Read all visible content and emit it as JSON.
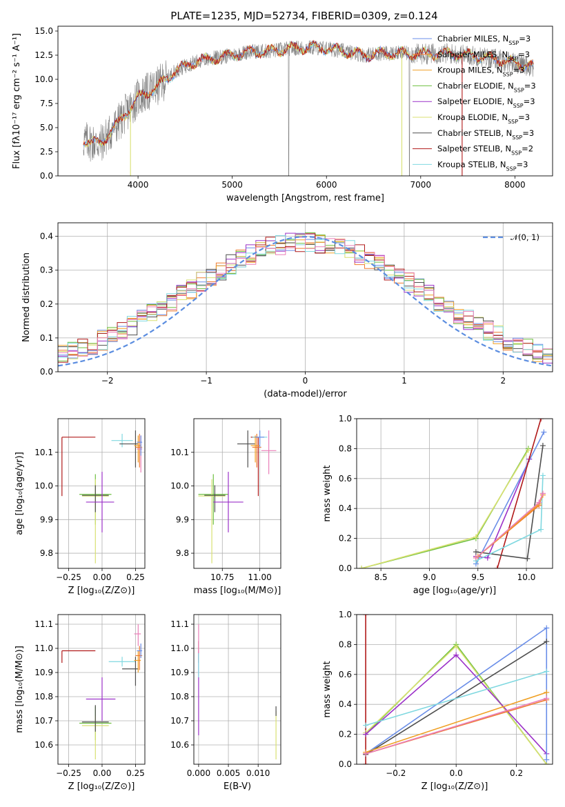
{
  "title": "PLATE=1235, MJD=52734, FIBERID=0309, z=0.124",
  "colors": {
    "chabrier_miles": "#6a8ee8",
    "salpeter_miles": "#ef7a2f",
    "kroupa_miles": "#f0a024",
    "chabrier_elodie": "#6dbf3f",
    "salpeter_elodie": "#9b30c8",
    "kroupa_elodie": "#d8e070",
    "chabrier_stelib": "#4d4d4d",
    "salpeter_stelib": "#b01818",
    "kroupa_stelib": "#7fd8e0",
    "pink": "#ea7fb8",
    "data": "#808080",
    "normal": "#5b8de0"
  },
  "chart_data": [
    {
      "type": "line",
      "name": "spectrum",
      "xlabel": "wavelength [Angstrom, rest frame]",
      "ylabel": "Flux [fλ10⁻¹⁷ erg cm⁻² s⁻¹ A⁻¹]",
      "xlim": [
        3150,
        8400
      ],
      "ylim": [
        0,
        15.5
      ],
      "xticks": [
        "4000",
        "5000",
        "6000",
        "7000",
        "8000"
      ],
      "yticks": [
        "0.0",
        "2.5",
        "5.0",
        "7.5",
        "10.0",
        "12.5",
        "15.0"
      ],
      "continuum_x": [
        3400,
        3600,
        3800,
        4000,
        4200,
        4400,
        4600,
        4800,
        5000,
        5200,
        5400,
        5600,
        5800,
        6000,
        6200,
        6400,
        6600,
        6800,
        7000,
        7200,
        7400,
        7600,
        7800,
        8000,
        8200
      ],
      "continuum_y": [
        3.7,
        3.3,
        5.6,
        8.1,
        9.2,
        10.9,
        11.8,
        12.2,
        12.5,
        12.9,
        12.9,
        13.2,
        13.3,
        13.2,
        12.9,
        12.5,
        12.7,
        12.7,
        12.6,
        12.7,
        12.6,
        12.4,
        12.1,
        11.7,
        11.3
      ],
      "legend": [
        {
          "label": "Chabrier MILES, N",
          "sub": "SSP",
          "n": "=3",
          "color": "chabrier_miles"
        },
        {
          "label": "Salpeter MILES, N",
          "sub": "SSP",
          "n": "=3",
          "color": "salpeter_miles"
        },
        {
          "label": "Kroupa MILES, N",
          "sub": "SSP",
          "n": "=3",
          "color": "kroupa_miles"
        },
        {
          "label": "Chabrier ELODIE, N",
          "sub": "SSP",
          "n": "=3",
          "color": "chabrier_elodie"
        },
        {
          "label": "Salpeter ELODIE, N",
          "sub": "SSP",
          "n": "=3",
          "color": "salpeter_elodie"
        },
        {
          "label": "Kroupa ELODIE, N",
          "sub": "SSP",
          "n": "=3",
          "color": "kroupa_elodie"
        },
        {
          "label": "Chabrier STELIB, N",
          "sub": "SSP",
          "n": "=3",
          "color": "chabrier_stelib"
        },
        {
          "label": "Salpeter STELIB, N",
          "sub": "SSP",
          "n": "=2",
          "color": "salpeter_stelib"
        },
        {
          "label": "Kroupa STELIB, N",
          "sub": "SSP",
          "n": "=3",
          "color": "kroupa_stelib"
        }
      ]
    },
    {
      "type": "line",
      "name": "residuals",
      "xlabel": "(data-model)/error",
      "ylabel": "Normed distribution",
      "xlim": [
        -2.5,
        2.5
      ],
      "ylim": [
        0,
        0.44
      ],
      "xticks": [
        "−2",
        "−1",
        "0",
        "1",
        "2"
      ],
      "yticks": [
        "0.0",
        "0.1",
        "0.2",
        "0.3",
        "0.4"
      ],
      "legend_label": "𝒩(0, 1)",
      "legend_position": "top-right"
    },
    {
      "type": "scatter",
      "name": "age-vs-Z",
      "xlabel": "Z [log₁₀(Z/Z⊙)]",
      "ylabel": "age  [log₁₀(age/yr)]",
      "xlim": [
        -0.33,
        0.32
      ],
      "ylim": [
        9.755,
        10.2
      ],
      "xticks": [
        "−0.25",
        "0.00",
        "0.25"
      ],
      "yticks": [
        "9.8",
        "9.9",
        "10.0",
        "10.1"
      ],
      "points": [
        {
          "x": -0.3,
          "y": 10.145,
          "xerr": [
            0.0,
            0.25
          ],
          "yerr": [
            0.175,
            0.0
          ],
          "color": "salpeter_stelib"
        },
        {
          "x": 0.15,
          "y": 10.135,
          "xerr": [
            0.08,
            0.08
          ],
          "yerr": [
            0.02,
            0.02
          ],
          "color": "kroupa_stelib"
        },
        {
          "x": 0.25,
          "y": 10.125,
          "xerr": [
            0.12,
            0.02
          ],
          "yerr": [
            0.07,
            0.04
          ],
          "color": "chabrier_stelib"
        },
        {
          "x": 0.27,
          "y": 10.12,
          "xerr": [
            0.03,
            0.02
          ],
          "yerr": [
            0.05,
            0.03
          ],
          "color": "kroupa_miles"
        },
        {
          "x": 0.28,
          "y": 10.115,
          "xerr": [
            0.03,
            0.02
          ],
          "yerr": [
            0.06,
            0.04
          ],
          "color": "salpeter_miles"
        },
        {
          "x": 0.29,
          "y": 10.11,
          "xerr": [
            0.03,
            0.01
          ],
          "yerr": [
            0.07,
            0.04
          ],
          "color": "pink"
        },
        {
          "x": 0.29,
          "y": 10.13,
          "xerr": [
            0.03,
            0.01
          ],
          "yerr": [
            0.04,
            0.02
          ],
          "color": "chabrier_miles"
        },
        {
          "x": -0.05,
          "y": 9.975,
          "xerr": [
            0.12,
            0.12
          ],
          "yerr": [
            0.09,
            0.06
          ],
          "color": "chabrier_elodie"
        },
        {
          "x": -0.05,
          "y": 9.97,
          "xerr": [
            0.1,
            0.1
          ],
          "yerr": [
            0.2,
            0.05
          ],
          "color": "kroupa_elodie"
        },
        {
          "x": -0.05,
          "y": 9.972,
          "xerr": [
            0.1,
            0.1
          ],
          "yerr": [
            0.05,
            0.03
          ],
          "color": "chabrier_stelib"
        },
        {
          "x": 0.0,
          "y": 9.952,
          "xerr": [
            0.12,
            0.09
          ],
          "yerr": [
            0.09,
            0.09
          ],
          "color": "salpeter_elodie"
        }
      ]
    },
    {
      "type": "scatter",
      "name": "age-vs-mass",
      "xlabel": "mass [log₁₀(M/M⊙)]",
      "ylabel": "",
      "xlim": [
        10.56,
        11.14
      ],
      "ylim": [
        9.755,
        10.2
      ],
      "xticks": [
        "10.75",
        "11.00"
      ],
      "yticks": [
        "9.8",
        "9.9",
        "10.0",
        "10.1"
      ],
      "points": [
        {
          "x": 10.99,
          "y": 10.145,
          "xerr": [
            0.05,
            0.0
          ],
          "yerr": [
            0.175,
            0.0
          ],
          "color": "salpeter_stelib"
        },
        {
          "x": 11.0,
          "y": 10.145,
          "xerr": [
            0.05,
            0.05
          ],
          "yerr": [
            0.02,
            0.02
          ],
          "color": "kroupa_stelib"
        },
        {
          "x": 10.92,
          "y": 10.125,
          "xerr": [
            0.07,
            0.05
          ],
          "yerr": [
            0.07,
            0.04
          ],
          "color": "chabrier_stelib"
        },
        {
          "x": 10.97,
          "y": 10.12,
          "xerr": [
            0.03,
            0.03
          ],
          "yerr": [
            0.05,
            0.03
          ],
          "color": "kroupa_miles"
        },
        {
          "x": 10.98,
          "y": 10.115,
          "xerr": [
            0.03,
            0.03
          ],
          "yerr": [
            0.06,
            0.04
          ],
          "color": "salpeter_miles"
        },
        {
          "x": 11.06,
          "y": 10.105,
          "xerr": [
            0.05,
            0.05
          ],
          "yerr": [
            0.07,
            0.06
          ],
          "color": "pink"
        },
        {
          "x": 11.0,
          "y": 10.145,
          "xerr": [
            0.03,
            0.03
          ],
          "yerr": [
            0.03,
            0.02
          ],
          "color": "chabrier_miles"
        },
        {
          "x": 10.69,
          "y": 9.975,
          "xerr": [
            0.1,
            0.1
          ],
          "yerr": [
            0.09,
            0.06
          ],
          "color": "chabrier_elodie"
        },
        {
          "x": 10.68,
          "y": 9.97,
          "xerr": [
            0.09,
            0.09
          ],
          "yerr": [
            0.2,
            0.05
          ],
          "color": "kroupa_elodie"
        },
        {
          "x": 10.7,
          "y": 9.972,
          "xerr": [
            0.07,
            0.07
          ],
          "yerr": [
            0.05,
            0.03
          ],
          "color": "chabrier_stelib"
        },
        {
          "x": 10.79,
          "y": 9.952,
          "xerr": [
            0.1,
            0.1
          ],
          "yerr": [
            0.09,
            0.09
          ],
          "color": "salpeter_elodie"
        }
      ]
    },
    {
      "type": "line",
      "name": "massweight-vs-age",
      "xlabel": "age  [log₁₀(age/yr)]",
      "ylabel": "mass weight",
      "xlim": [
        8.25,
        10.27
      ],
      "ylim": [
        0,
        1
      ],
      "xticks": [
        "8.5",
        "9.0",
        "9.5",
        "10.0"
      ],
      "yticks": [
        "0.0",
        "0.2",
        "0.4",
        "0.6",
        "0.8",
        "1.0"
      ],
      "series": [
        {
          "color": "chabrier_elodie",
          "x": [
            8.3,
            9.48,
            10.02
          ],
          "y": [
            0.0,
            0.2,
            0.8
          ]
        },
        {
          "color": "kroupa_elodie",
          "x": [
            8.3,
            9.48,
            10.02
          ],
          "y": [
            0.0,
            0.21,
            0.79
          ]
        },
        {
          "color": "salpeter_elodie",
          "x": [
            9.48,
            9.6,
            10.03
          ],
          "y": [
            0.08,
            0.07,
            0.73
          ]
        },
        {
          "color": "chabrier_miles",
          "x": [
            9.48,
            10.18
          ],
          "y": [
            0.03,
            0.91
          ]
        },
        {
          "color": "salpeter_stelib",
          "x": [
            9.7,
            10.15
          ],
          "y": [
            0.0,
            1.0
          ]
        },
        {
          "color": "chabrier_stelib",
          "x": [
            9.48,
            10.01,
            10.17
          ],
          "y": [
            0.11,
            0.065,
            0.82
          ]
        },
        {
          "color": "kroupa_stelib",
          "x": [
            9.48,
            10.15,
            10.17
          ],
          "y": [
            0.05,
            0.26,
            0.62
          ]
        },
        {
          "color": "salpeter_miles",
          "x": [
            9.48,
            10.13,
            10.17
          ],
          "y": [
            0.07,
            0.42,
            0.5
          ]
        },
        {
          "color": "kroupa_miles",
          "x": [
            9.5,
            10.13,
            10.17
          ],
          "y": [
            0.08,
            0.43,
            0.49
          ]
        },
        {
          "color": "pink",
          "x": [
            9.48,
            10.13,
            10.17
          ],
          "y": [
            0.07,
            0.44,
            0.5
          ]
        }
      ]
    },
    {
      "type": "scatter",
      "name": "mass-vs-Z",
      "xlabel": "Z [log₁₀(Z/Z⊙)]",
      "ylabel": "mass [log₁₀(M/M⊙)]",
      "xlim": [
        -0.33,
        0.32
      ],
      "ylim": [
        10.52,
        11.14
      ],
      "xticks": [
        "−0.25",
        "0.00",
        "0.25"
      ],
      "yticks": [
        "10.6",
        "10.7",
        "10.8",
        "10.9",
        "11.0",
        "11.1"
      ],
      "points": [
        {
          "x": -0.3,
          "y": 10.99,
          "xerr": [
            0.0,
            0.25
          ],
          "yerr": [
            0.05,
            0.0
          ],
          "color": "salpeter_stelib"
        },
        {
          "x": 0.15,
          "y": 10.945,
          "xerr": [
            0.1,
            0.1
          ],
          "yerr": [
            0.02,
            0.02
          ],
          "color": "kroupa_stelib"
        },
        {
          "x": 0.25,
          "y": 10.915,
          "xerr": [
            0.1,
            0.02
          ],
          "yerr": [
            0.07,
            0.05
          ],
          "color": "chabrier_stelib"
        },
        {
          "x": 0.27,
          "y": 10.95,
          "xerr": [
            0.03,
            0.02
          ],
          "yerr": [
            0.05,
            0.04
          ],
          "color": "kroupa_miles"
        },
        {
          "x": 0.28,
          "y": 10.97,
          "xerr": [
            0.03,
            0.02
          ],
          "yerr": [
            0.06,
            0.04
          ],
          "color": "salpeter_miles"
        },
        {
          "x": 0.27,
          "y": 11.06,
          "xerr": [
            0.03,
            0.02
          ],
          "yerr": [
            0.05,
            0.04
          ],
          "color": "pink"
        },
        {
          "x": 0.29,
          "y": 10.99,
          "xerr": [
            0.03,
            0.01
          ],
          "yerr": [
            0.03,
            0.03
          ],
          "color": "chabrier_miles"
        },
        {
          "x": -0.05,
          "y": 10.69,
          "xerr": [
            0.12,
            0.12
          ],
          "yerr": [
            0.07,
            0.07
          ],
          "color": "chabrier_elodie"
        },
        {
          "x": -0.05,
          "y": 10.68,
          "xerr": [
            0.1,
            0.1
          ],
          "yerr": [
            0.14,
            0.04
          ],
          "color": "kroupa_elodie"
        },
        {
          "x": -0.05,
          "y": 10.695,
          "xerr": [
            0.1,
            0.1
          ],
          "yerr": [
            0.04,
            0.07
          ],
          "color": "chabrier_stelib"
        },
        {
          "x": 0.0,
          "y": 10.79,
          "xerr": [
            0.12,
            0.1
          ],
          "yerr": [
            0.09,
            0.09
          ],
          "color": "salpeter_elodie"
        }
      ]
    },
    {
      "type": "scatter",
      "name": "mass-vs-ebv",
      "xlabel": "E(B-V)",
      "ylabel": "",
      "xlim": [
        -0.0008,
        0.0138
      ],
      "ylim": [
        10.52,
        11.14
      ],
      "xticks": [
        "0.000",
        "0.005",
        "0.010"
      ],
      "yticks": [
        "10.6",
        "10.7",
        "10.8",
        "10.9",
        "11.0",
        "11.1"
      ],
      "points": [
        {
          "x": 0.0,
          "y": 10.99,
          "xerr": [
            0,
            0
          ],
          "yerr": [
            0.05,
            0.04
          ],
          "color": "salpeter_stelib"
        },
        {
          "x": 0.0,
          "y": 10.79,
          "xerr": [
            0,
            0
          ],
          "yerr": [
            0.15,
            0.2
          ],
          "color": "salpeter_elodie"
        },
        {
          "x": 0.0,
          "y": 11.02,
          "xerr": [
            0,
            0
          ],
          "yerr": [
            0.08,
            0.08
          ],
          "color": "pink"
        },
        {
          "x": 0.0,
          "y": 10.93,
          "xerr": [
            0,
            0
          ],
          "yerr": [
            0.05,
            0.05
          ],
          "color": "kroupa_stelib"
        },
        {
          "x": 0.013,
          "y": 10.69,
          "xerr": [
            0,
            0
          ],
          "yerr": [
            0.15,
            0.05
          ],
          "color": "kroupa_elodie"
        },
        {
          "x": 0.013,
          "y": 10.74,
          "xerr": [
            0,
            0
          ],
          "yerr": [
            0.02,
            0.02
          ],
          "color": "chabrier_stelib"
        }
      ]
    },
    {
      "type": "line",
      "name": "massweight-vs-Z",
      "xlabel": "Z [log₁₀(Z/Z⊙)]",
      "ylabel": "mass weight",
      "xlim": [
        -0.33,
        0.32
      ],
      "ylim": [
        0,
        1
      ],
      "xticks": [
        "−0.2",
        "0.0",
        "0.2"
      ],
      "yticks": [
        "0.0",
        "0.2",
        "0.4",
        "0.6",
        "0.8",
        "1.0"
      ],
      "series": [
        {
          "color": "salpeter_stelib",
          "x": [
            -0.3,
            -0.3
          ],
          "y": [
            0.0,
            1.0
          ]
        },
        {
          "color": "chabrier_elodie",
          "x": [
            -0.3,
            0.0,
            0.3
          ],
          "y": [
            0.2,
            0.8,
            0.0
          ]
        },
        {
          "color": "kroupa_elodie",
          "x": [
            -0.3,
            0.0,
            0.3
          ],
          "y": [
            0.21,
            0.79,
            0.0
          ]
        },
        {
          "color": "salpeter_elodie",
          "x": [
            -0.3,
            0.0,
            0.3
          ],
          "y": [
            0.2,
            0.73,
            0.07
          ]
        },
        {
          "color": "chabrier_miles",
          "x": [
            -0.3,
            0.3,
            0.3
          ],
          "y": [
            0.07,
            0.91,
            0.03
          ]
        },
        {
          "color": "chabrier_stelib",
          "x": [
            -0.3,
            0.3
          ],
          "y": [
            0.065,
            0.82
          ]
        },
        {
          "color": "kroupa_stelib",
          "x": [
            -0.3,
            0.3
          ],
          "y": [
            0.26,
            0.62
          ]
        },
        {
          "color": "salpeter_miles",
          "x": [
            -0.3,
            0.3
          ],
          "y": [
            0.07,
            0.43
          ]
        },
        {
          "color": "kroupa_miles",
          "x": [
            -0.3,
            0.3
          ],
          "y": [
            0.08,
            0.48
          ]
        },
        {
          "color": "pink",
          "x": [
            -0.3,
            0.3
          ],
          "y": [
            0.07,
            0.44
          ]
        }
      ]
    }
  ]
}
